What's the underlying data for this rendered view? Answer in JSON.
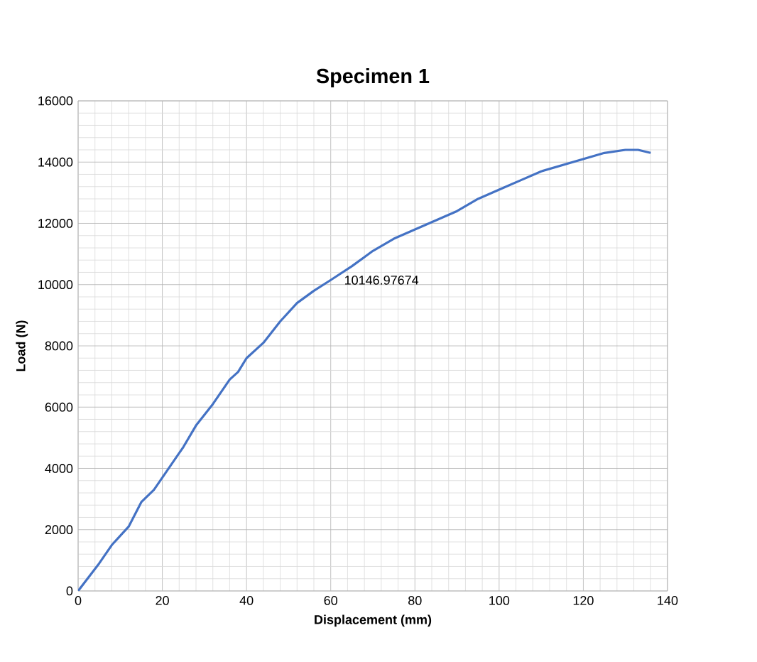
{
  "chart_data": {
    "type": "line",
    "title": "Specimen 1",
    "xlabel": "Displacement (mm)",
    "ylabel": "Load (N)",
    "x": [
      0,
      5,
      8,
      12,
      15,
      18,
      22,
      25,
      28,
      32,
      36,
      38,
      40,
      44,
      48,
      52,
      56,
      60,
      65,
      70,
      75,
      80,
      85,
      90,
      95,
      100,
      105,
      110,
      115,
      120,
      125,
      130,
      133,
      136
    ],
    "series": [
      {
        "color": "#4472c4",
        "values": [
          0,
          900,
          1500,
          2100,
          2900,
          3300,
          4100,
          4700,
          5400,
          6100,
          6900,
          7150,
          7600,
          8100,
          8800,
          9400,
          9800,
          10150,
          10600,
          11100,
          11500,
          11800,
          12100,
          12400,
          12800,
          13100,
          13400,
          13700,
          13900,
          14100,
          14300,
          14400,
          14400,
          14300
        ]
      }
    ],
    "xlim": [
      0,
      140
    ],
    "xticks": [
      0,
      20,
      40,
      60,
      80,
      100,
      120,
      140
    ],
    "ylim": [
      0,
      16000
    ],
    "yticks": [
      0,
      2000,
      4000,
      6000,
      8000,
      10000,
      12000,
      14000,
      16000
    ],
    "grid": true,
    "marker": "none",
    "line_style": "solid",
    "annotations": [
      {
        "text": "10146.97674",
        "x": 62,
        "y": 10147
      }
    ]
  }
}
